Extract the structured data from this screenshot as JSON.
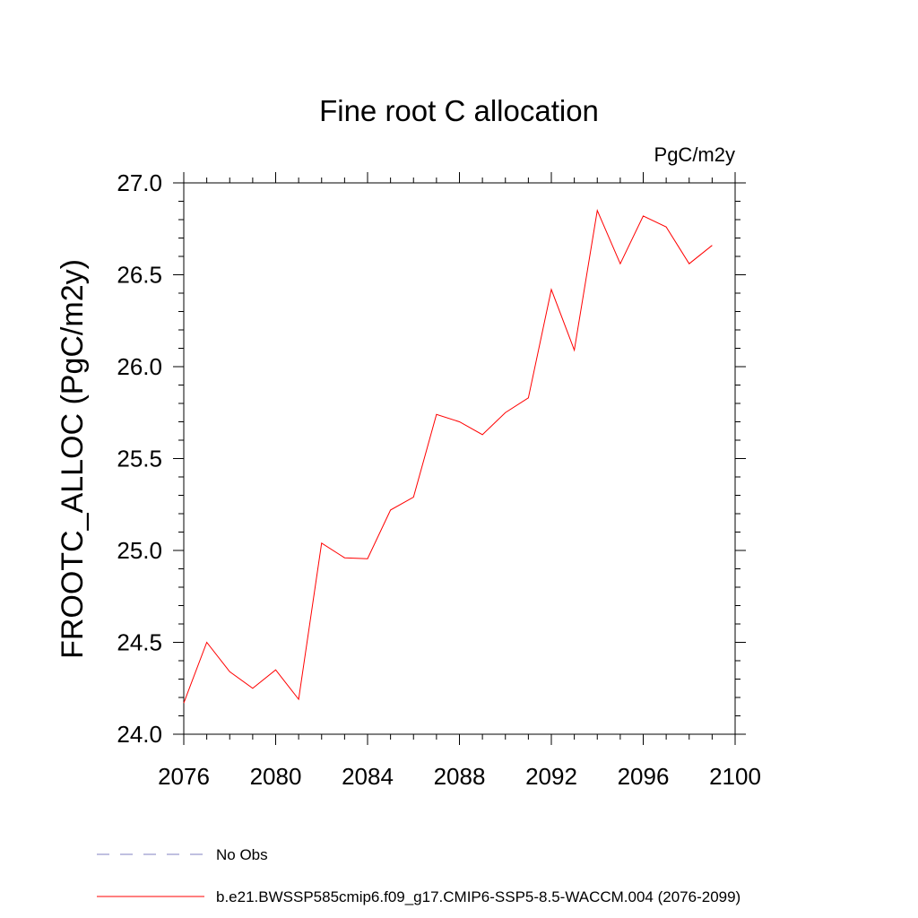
{
  "chart_data": {
    "type": "line",
    "title": "Fine root C allocation",
    "units": "PgC/m2y",
    "ylabel": "FROOTC_ALLOC  (PgC/m2y)",
    "xlabel": "",
    "xlim": [
      2076,
      2100
    ],
    "ylim": [
      24.0,
      27.0
    ],
    "xticks": [
      "2076",
      "2080",
      "2084",
      "2088",
      "2092",
      "2096",
      "2100"
    ],
    "yticks": [
      "24.0",
      "24.5",
      "25.0",
      "25.5",
      "26.0",
      "26.5",
      "27.0"
    ],
    "grid": false,
    "legend_position": "bottom-left",
    "series": [
      {
        "name": "No Obs",
        "color": "#8080c0",
        "dash": true,
        "x": [],
        "values": []
      },
      {
        "name": "b.e21.BWSSP585cmip6.f09_g17.CMIP6-SSP5-8.5-WACCM.004 (2076-2099)",
        "color": "#ff0000",
        "dash": false,
        "x": [
          2076,
          2077,
          2078,
          2079,
          2080,
          2081,
          2082,
          2083,
          2084,
          2085,
          2086,
          2087,
          2088,
          2089,
          2090,
          2091,
          2092,
          2093,
          2094,
          2095,
          2096,
          2097,
          2098,
          2099
        ],
        "values": [
          24.17,
          24.5,
          24.34,
          24.25,
          24.35,
          24.19,
          25.04,
          24.96,
          24.955,
          25.22,
          25.29,
          25.74,
          25.7,
          25.63,
          25.75,
          25.83,
          26.42,
          26.09,
          26.85,
          26.56,
          26.82,
          26.76,
          26.56,
          26.66
        ]
      }
    ]
  }
}
